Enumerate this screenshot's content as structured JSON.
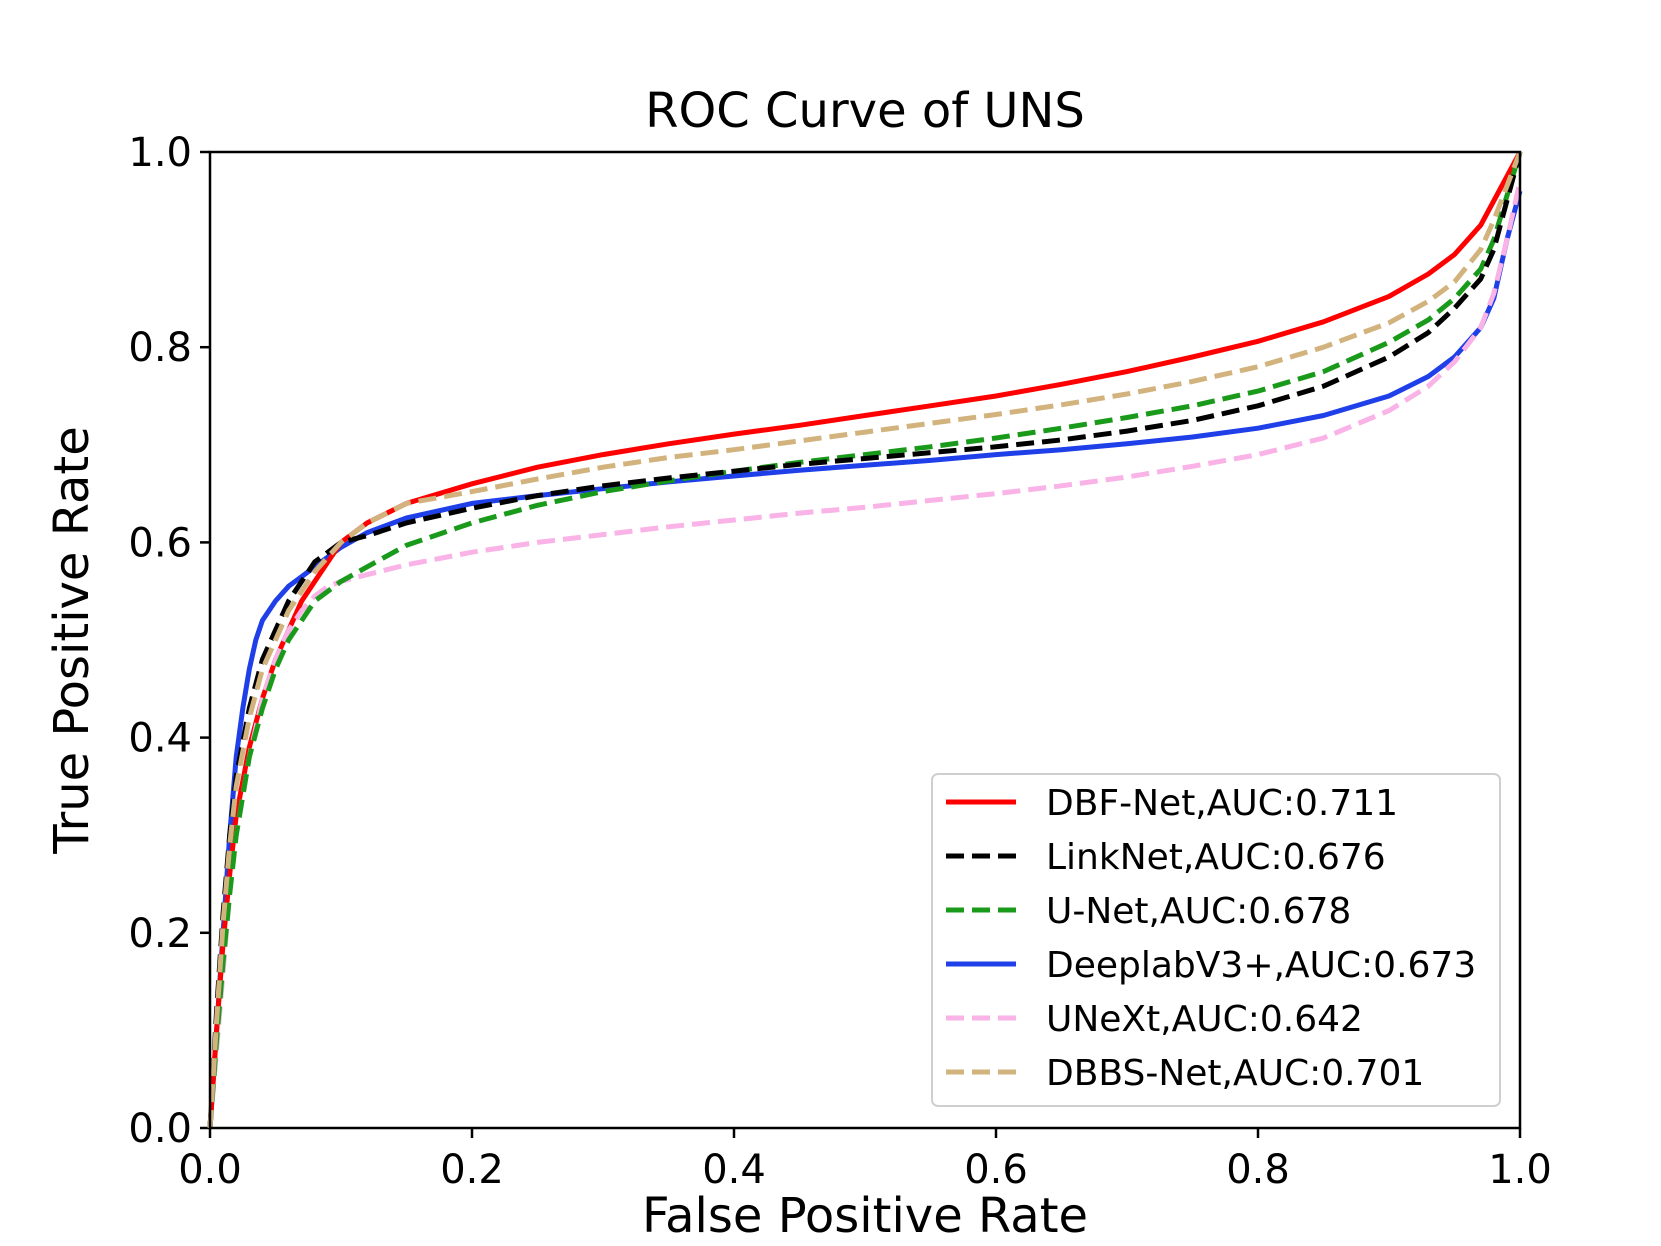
{
  "chart_data": {
    "type": "line",
    "title": "ROC Curve of UNS",
    "xlabel": "False Positive Rate",
    "ylabel": "True Positive Rate",
    "xlim": [
      0.0,
      1.0
    ],
    "ylim": [
      0.0,
      1.0
    ],
    "xticks": [
      "0.0",
      "0.2",
      "0.4",
      "0.6",
      "0.8",
      "1.0"
    ],
    "yticks": [
      "0.0",
      "0.2",
      "0.4",
      "0.6",
      "0.8",
      "1.0"
    ],
    "grid": false,
    "legend_position": "bottom-right",
    "series": [
      {
        "name": "DBF-Net,AUC:0.711",
        "color": "#ff0000",
        "style": "solid",
        "x": [
          0.0,
          0.005,
          0.01,
          0.015,
          0.02,
          0.03,
          0.04,
          0.05,
          0.06,
          0.07,
          0.08,
          0.09,
          0.1,
          0.12,
          0.15,
          0.2,
          0.25,
          0.3,
          0.35,
          0.4,
          0.45,
          0.5,
          0.55,
          0.6,
          0.65,
          0.7,
          0.75,
          0.8,
          0.85,
          0.9,
          0.93,
          0.95,
          0.97,
          0.98,
          0.99,
          1.0
        ],
        "y": [
          0.0,
          0.1,
          0.19,
          0.26,
          0.32,
          0.39,
          0.44,
          0.48,
          0.51,
          0.54,
          0.56,
          0.58,
          0.6,
          0.62,
          0.64,
          0.66,
          0.677,
          0.69,
          0.701,
          0.711,
          0.72,
          0.73,
          0.74,
          0.75,
          0.762,
          0.775,
          0.79,
          0.806,
          0.826,
          0.852,
          0.875,
          0.895,
          0.925,
          0.95,
          0.975,
          1.0
        ]
      },
      {
        "name": "LinkNet,AUC:0.676",
        "color": "#000000",
        "style": "dashed",
        "x": [
          0.0,
          0.005,
          0.01,
          0.015,
          0.02,
          0.03,
          0.04,
          0.05,
          0.06,
          0.07,
          0.08,
          0.09,
          0.1,
          0.12,
          0.15,
          0.2,
          0.25,
          0.3,
          0.35,
          0.4,
          0.45,
          0.5,
          0.55,
          0.6,
          0.65,
          0.7,
          0.75,
          0.8,
          0.85,
          0.9,
          0.93,
          0.95,
          0.97,
          0.98,
          0.99,
          1.0
        ],
        "y": [
          0.0,
          0.12,
          0.22,
          0.3,
          0.36,
          0.43,
          0.48,
          0.51,
          0.54,
          0.56,
          0.58,
          0.59,
          0.6,
          0.607,
          0.62,
          0.635,
          0.648,
          0.658,
          0.666,
          0.673,
          0.68,
          0.686,
          0.692,
          0.698,
          0.705,
          0.714,
          0.725,
          0.74,
          0.76,
          0.79,
          0.815,
          0.84,
          0.87,
          0.9,
          0.95,
          1.0
        ]
      },
      {
        "name": "U-Net,AUC:0.678",
        "color": "#1a9a1a",
        "style": "dashed",
        "x": [
          0.0,
          0.005,
          0.01,
          0.015,
          0.02,
          0.03,
          0.04,
          0.05,
          0.06,
          0.07,
          0.08,
          0.09,
          0.1,
          0.12,
          0.15,
          0.2,
          0.25,
          0.3,
          0.35,
          0.4,
          0.45,
          0.5,
          0.55,
          0.6,
          0.65,
          0.7,
          0.75,
          0.8,
          0.85,
          0.9,
          0.93,
          0.95,
          0.97,
          0.98,
          0.99,
          1.0
        ],
        "y": [
          0.0,
          0.09,
          0.17,
          0.24,
          0.3,
          0.38,
          0.43,
          0.47,
          0.5,
          0.52,
          0.54,
          0.55,
          0.56,
          0.575,
          0.597,
          0.62,
          0.638,
          0.652,
          0.663,
          0.673,
          0.682,
          0.69,
          0.698,
          0.707,
          0.717,
          0.728,
          0.74,
          0.755,
          0.775,
          0.805,
          0.828,
          0.85,
          0.88,
          0.91,
          0.955,
          1.0
        ]
      },
      {
        "name": "DeeplabV3+,AUC:0.673",
        "color": "#1f3fe8",
        "style": "solid",
        "x": [
          0.0,
          0.005,
          0.01,
          0.015,
          0.02,
          0.025,
          0.03,
          0.035,
          0.04,
          0.05,
          0.06,
          0.07,
          0.08,
          0.09,
          0.1,
          0.12,
          0.15,
          0.2,
          0.25,
          0.3,
          0.35,
          0.4,
          0.45,
          0.5,
          0.55,
          0.6,
          0.65,
          0.7,
          0.75,
          0.8,
          0.85,
          0.9,
          0.93,
          0.95,
          0.97,
          0.98,
          0.99,
          1.0
        ],
        "y": [
          0.0,
          0.1,
          0.2,
          0.3,
          0.38,
          0.43,
          0.47,
          0.5,
          0.52,
          0.54,
          0.555,
          0.565,
          0.575,
          0.585,
          0.595,
          0.61,
          0.625,
          0.64,
          0.648,
          0.655,
          0.662,
          0.668,
          0.674,
          0.679,
          0.684,
          0.69,
          0.695,
          0.701,
          0.708,
          0.717,
          0.73,
          0.75,
          0.77,
          0.79,
          0.82,
          0.85,
          0.91,
          0.96
        ]
      },
      {
        "name": "UNeXt,AUC:0.642",
        "color": "#f9b3e6",
        "style": "dashed",
        "x": [
          0.0,
          0.005,
          0.01,
          0.015,
          0.02,
          0.03,
          0.04,
          0.05,
          0.06,
          0.07,
          0.08,
          0.09,
          0.1,
          0.12,
          0.15,
          0.2,
          0.25,
          0.3,
          0.35,
          0.4,
          0.45,
          0.5,
          0.55,
          0.6,
          0.65,
          0.7,
          0.75,
          0.8,
          0.85,
          0.9,
          0.93,
          0.95,
          0.97,
          0.98,
          0.99,
          1.0
        ],
        "y": [
          0.0,
          0.08,
          0.16,
          0.24,
          0.3,
          0.38,
          0.44,
          0.48,
          0.51,
          0.53,
          0.545,
          0.555,
          0.56,
          0.567,
          0.577,
          0.59,
          0.6,
          0.608,
          0.616,
          0.623,
          0.63,
          0.636,
          0.643,
          0.65,
          0.658,
          0.667,
          0.678,
          0.69,
          0.707,
          0.735,
          0.76,
          0.785,
          0.82,
          0.855,
          0.91,
          0.97
        ]
      },
      {
        "name": "DBBS-Net,AUC:0.701",
        "color": "#d2b37e",
        "style": "dashed",
        "x": [
          0.0,
          0.005,
          0.01,
          0.015,
          0.02,
          0.03,
          0.04,
          0.05,
          0.06,
          0.07,
          0.08,
          0.09,
          0.1,
          0.12,
          0.15,
          0.2,
          0.25,
          0.3,
          0.35,
          0.4,
          0.45,
          0.5,
          0.55,
          0.6,
          0.65,
          0.7,
          0.75,
          0.8,
          0.85,
          0.9,
          0.93,
          0.95,
          0.97,
          0.98,
          0.99,
          1.0
        ],
        "y": [
          0.0,
          0.11,
          0.21,
          0.29,
          0.35,
          0.42,
          0.47,
          0.5,
          0.53,
          0.55,
          0.57,
          0.585,
          0.6,
          0.62,
          0.64,
          0.652,
          0.665,
          0.677,
          0.687,
          0.695,
          0.704,
          0.713,
          0.722,
          0.731,
          0.741,
          0.752,
          0.765,
          0.78,
          0.8,
          0.825,
          0.847,
          0.867,
          0.9,
          0.93,
          0.965,
          1.0
        ]
      }
    ]
  }
}
